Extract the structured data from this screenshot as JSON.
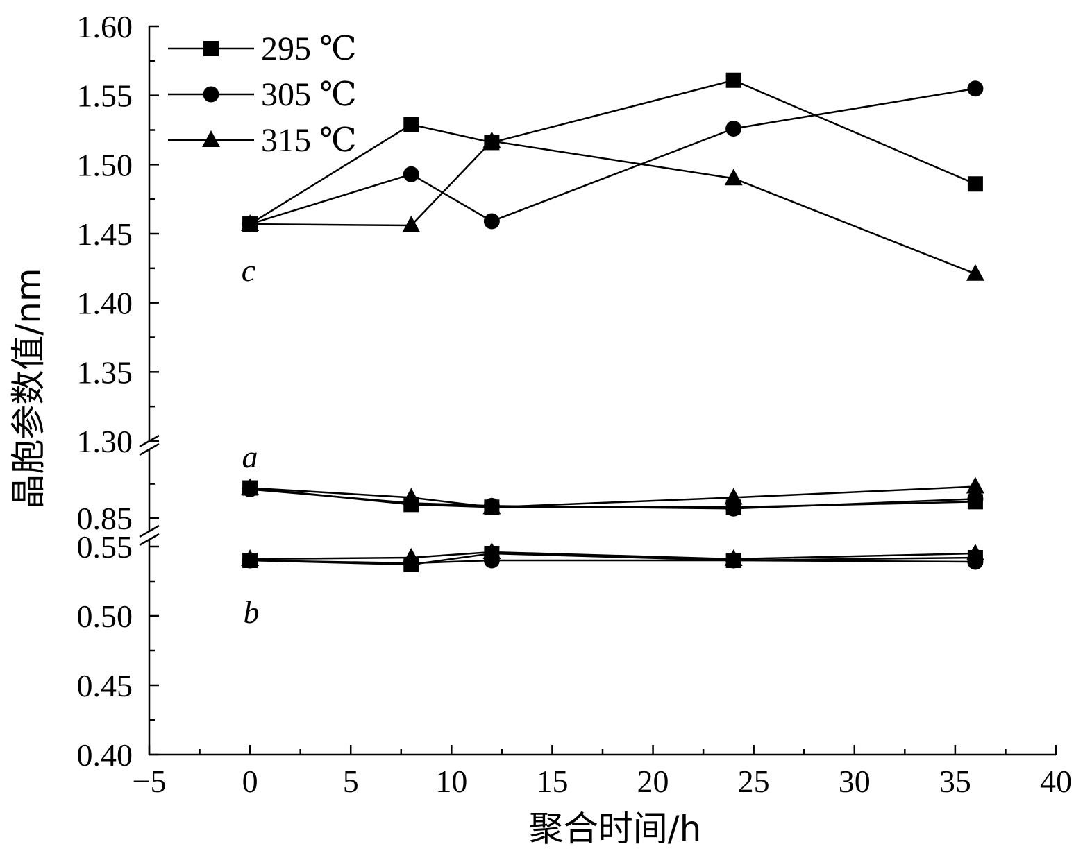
{
  "chart_data": {
    "type": "line",
    "title": "",
    "xlabel": "聚合时间/h",
    "ylabel": "晶胞参数值/nm",
    "xlim": [
      -5,
      40
    ],
    "x_ticks": [
      -5,
      0,
      5,
      10,
      15,
      20,
      25,
      30,
      35,
      40
    ],
    "x_tick_labels": [
      "−5",
      "0",
      "5",
      "10",
      "15",
      "20",
      "25",
      "30",
      "35",
      "40"
    ],
    "y_broken_segments": [
      {
        "range": [
          0.4,
          0.555
        ],
        "ticks": [
          0.4,
          0.45,
          0.5,
          0.55
        ],
        "tick_labels": [
          "0.40",
          "0.45",
          "0.50",
          "0.55"
        ]
      },
      {
        "range": [
          0.84,
          0.9
        ],
        "ticks": [
          0.85
        ],
        "tick_labels": [
          "0.85"
        ]
      },
      {
        "range": [
          1.3,
          1.6
        ],
        "ticks": [
          1.3,
          1.35,
          1.4,
          1.45,
          1.5,
          1.55,
          1.6
        ],
        "tick_labels": [
          "1.30",
          "1.35",
          "1.40",
          "1.45",
          "1.50",
          "1.55",
          "1.60"
        ]
      }
    ],
    "x": [
      0,
      8,
      12,
      24,
      36
    ],
    "series": [
      {
        "name": "295 ℃",
        "marker": "square",
        "a": [
          0.872,
          0.86,
          0.858,
          0.858,
          0.862
        ],
        "b": [
          0.54,
          0.537,
          0.545,
          0.54,
          0.542
        ],
        "c": [
          1.457,
          1.529,
          1.516,
          1.561,
          1.486
        ]
      },
      {
        "name": "305 ℃",
        "marker": "circle",
        "a": [
          0.871,
          0.861,
          0.859,
          0.857,
          0.864
        ],
        "b": [
          0.54,
          0.538,
          0.54,
          0.54,
          0.539
        ],
        "c": [
          1.457,
          1.493,
          1.459,
          1.526,
          1.555
        ]
      },
      {
        "name": "315 ℃",
        "marker": "triangle",
        "a": [
          0.872,
          0.865,
          0.858,
          0.865,
          0.873
        ],
        "b": [
          0.541,
          0.542,
          0.546,
          0.541,
          0.545
        ],
        "c": [
          1.457,
          1.456,
          1.517,
          1.49,
          1.421
        ]
      }
    ],
    "group_labels": [
      "c",
      "a",
      "b"
    ],
    "legend": {
      "position": "top-left",
      "entries": [
        "295 ℃",
        "305 ℃",
        "315 ℃"
      ]
    },
    "grid": false
  }
}
